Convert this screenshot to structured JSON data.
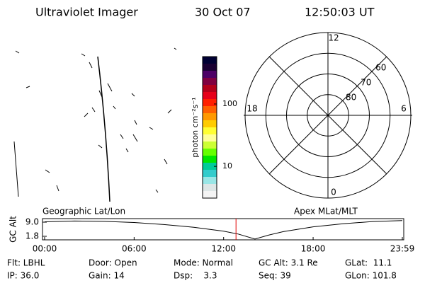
{
  "header": {
    "title": "Ultraviolet Imager",
    "date": "30 Oct 07",
    "time": "12:50:03 UT"
  },
  "colorbar": {
    "label": "photon cm⁻²s⁻¹",
    "scale": "log",
    "lim": [
      3.1,
      575
    ],
    "ticks": [
      10,
      100
    ],
    "colors": [
      "#000033",
      "#1a0033",
      "#4d0066",
      "#800040",
      "#b3001a",
      "#e6001a",
      "#ff2000",
      "#ff6000",
      "#ff9900",
      "#ffcc00",
      "#ffff33",
      "#ffff99",
      "#ccff33",
      "#66ff00",
      "#00e600",
      "#00cc99",
      "#33cccc",
      "#99e6e6",
      "#dde6e6",
      "#f4f4f4"
    ]
  },
  "polar": {
    "lat_lim": [
      50,
      90
    ],
    "lat_ticks": [
      60,
      70,
      80
    ],
    "mlt_ticks": [
      12,
      18,
      6,
      0
    ]
  },
  "chart_data": {
    "type": "line",
    "y_label": "GC Alt",
    "left_label": "Geographic Lat/Lon",
    "right_label": "Apex MLat/MLT",
    "x": [
      0,
      2,
      4,
      6,
      8,
      10,
      12,
      13,
      14.1,
      15,
      16,
      18,
      20,
      22,
      23.98
    ],
    "values": [
      9.2,
      9.6,
      9.4,
      8.8,
      7.8,
      6.4,
      4.4,
      2.9,
      0.4,
      2.4,
      4.2,
      6.6,
      8.2,
      9.3,
      9.8
    ],
    "color": "#000000",
    "marker_x": 12.83,
    "marker_color": "#e00000",
    "xlim": [
      0,
      23.98
    ],
    "ylim": [
      0,
      10.8
    ],
    "xticks": [
      {
        "value": 0,
        "label": "00:00"
      },
      {
        "value": 6,
        "label": "06:00"
      },
      {
        "value": 12,
        "label": "12:00"
      },
      {
        "value": 18,
        "label": "18:00"
      },
      {
        "value": 23.98,
        "label": "23:59"
      }
    ],
    "yticks": [
      {
        "value": 9.0,
        "label": "9.0"
      },
      {
        "value": 1.8,
        "label": "1.8"
      }
    ]
  },
  "footer": [
    [
      "Flt: LBHL",
      "Door: Open",
      "Mode: Normal",
      "GC Alt: 3.1 Re",
      "GLat:  11.1"
    ],
    [
      "IP: 36.0",
      "Gain: 14",
      "Dsp:    3.3",
      "Seq: 39",
      "GLon: 101.8"
    ]
  ]
}
